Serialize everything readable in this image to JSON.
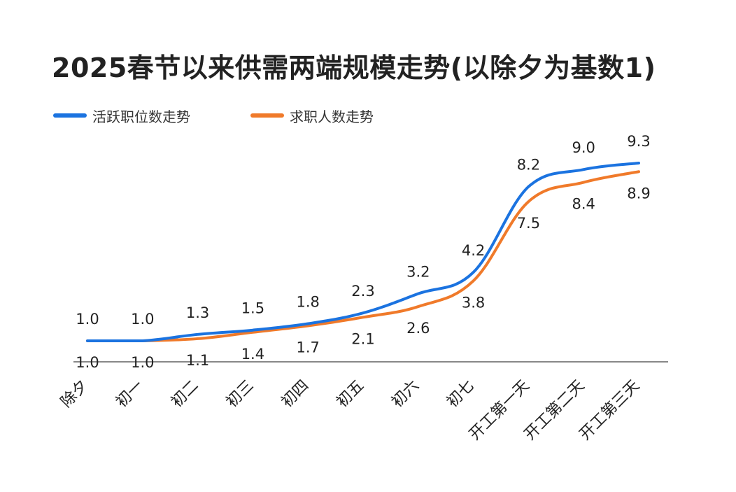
{
  "title": "2025春节以来供需两端规模走势(以除夕为基数1)",
  "legend": {
    "series_a": "活跃职位数走势",
    "series_b": "求职人数走势"
  },
  "colors": {
    "series_a": "#1b73e0",
    "series_b": "#f07a2a",
    "axis": "#888888"
  },
  "chart_data": {
    "type": "line",
    "title": "2025春节以来供需两端规模走势(以除夕为基数1)",
    "categories": [
      "除夕",
      "初一",
      "初二",
      "初三",
      "初四",
      "初五",
      "初六",
      "初七",
      "开工第一天",
      "开工第二天",
      "开工第三天"
    ],
    "series": [
      {
        "name": "活跃职位数走势",
        "values": [
          1.0,
          1.0,
          1.3,
          1.5,
          1.8,
          2.3,
          3.2,
          4.2,
          8.2,
          9.0,
          9.3
        ]
      },
      {
        "name": "求职人数走势",
        "values": [
          1.0,
          1.0,
          1.1,
          1.4,
          1.7,
          2.1,
          2.6,
          3.8,
          7.5,
          8.4,
          8.9
        ]
      }
    ],
    "xlabel": "",
    "ylabel": "",
    "ylim": [
      0,
      10
    ],
    "legend_position": "top-left",
    "grid": false
  }
}
